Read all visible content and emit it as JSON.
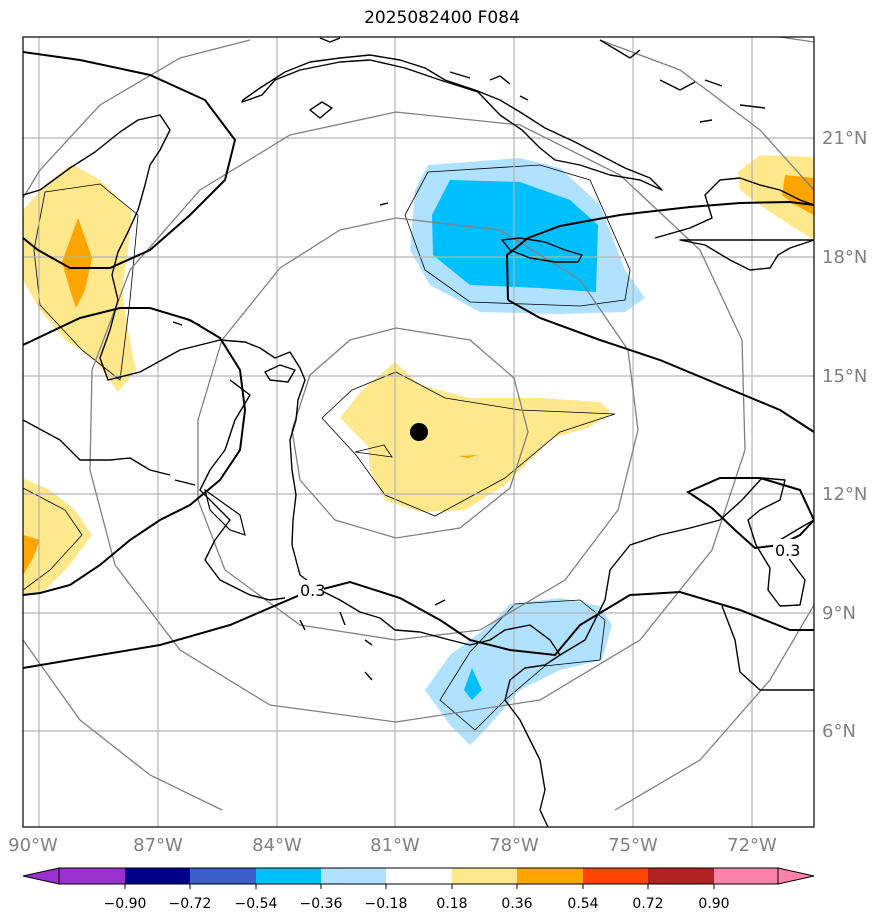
{
  "title": "2025082400 F084",
  "longitude_labels": [
    "90°W",
    "87°W",
    "84°W",
    "81°W",
    "78°W",
    "75°W",
    "72°W"
  ],
  "latitude_labels": [
    "21°N",
    "18°N",
    "15°N",
    "12°N",
    "9°N",
    "6°N"
  ],
  "contour_labels": [
    "0.3",
    "0.3"
  ],
  "colorbar": {
    "ticks": [
      "−0.90",
      "−0.72",
      "−0.54",
      "−0.36",
      "−0.18",
      "0.18",
      "0.36",
      "0.54",
      "0.72",
      "0.90"
    ],
    "colors": [
      "#9b30d0",
      "#00008b",
      "#3a5fcd",
      "#00bfff",
      "#b0e2ff",
      "#ffffff",
      "#ffe88c",
      "#ffa500",
      "#ff4500",
      "#b22222",
      "#ff82ab"
    ]
  },
  "storm_center": {
    "lon": -80.7,
    "lat": 13.6
  },
  "colors": {
    "grid": "#b3b3b3",
    "range_rings": "#808080",
    "coastline": "#000000",
    "tick_labels": "#808080"
  }
}
